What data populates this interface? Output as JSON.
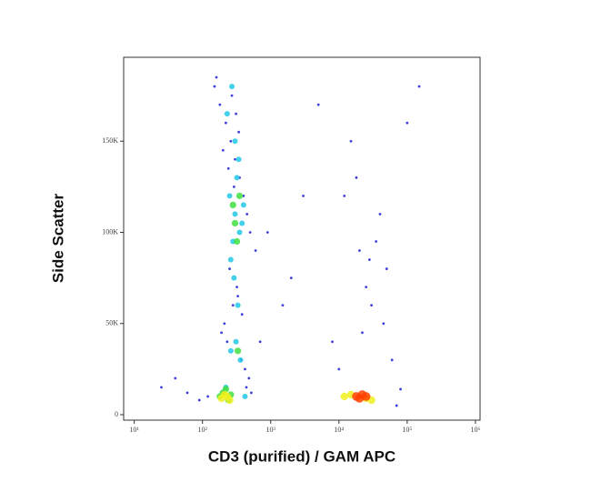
{
  "chart_data": {
    "type": "scatter",
    "x_label": "CD3 (purified) / GAM APC",
    "y_label": "Side Scatter",
    "xscale": "log",
    "xlim": [
      7,
      1170000
    ],
    "ylim": [
      -3000,
      196000
    ],
    "xticks": [
      {
        "value": 10,
        "label": "10¹"
      },
      {
        "value": 100,
        "label": "10²"
      },
      {
        "value": 1000,
        "label": "10³"
      },
      {
        "value": 10000,
        "label": "10⁴"
      },
      {
        "value": 100000,
        "label": "10⁵"
      },
      {
        "value": 1000000,
        "label": "10⁶"
      }
    ],
    "yticks": [
      0,
      {
        "value": 50000,
        "label": "50K"
      },
      {
        "value": 100000,
        "label": "100K"
      },
      {
        "value": 150000,
        "label": "150K"
      }
    ],
    "series": [
      {
        "color": "#2a2ad8",
        "x": [
          150,
          180,
          220,
          260,
          300,
          350,
          400,
          450,
          500,
          600,
          250,
          320,
          280,
          210,
          190,
          230,
          370,
          420,
          480,
          160,
          270,
          310,
          340,
          200,
          240,
          290,
          330,
          380,
          440,
          520,
          120,
          90,
          60,
          40,
          25,
          700,
          900,
          1500,
          8000,
          12000,
          15000,
          20000,
          25000,
          30000,
          40000,
          50000,
          60000,
          10000,
          18000,
          35000,
          5000,
          3000,
          2000,
          70000,
          100000,
          150000,
          80000,
          22000,
          28000,
          45000
        ],
        "values": [
          180000,
          170000,
          160000,
          150000,
          140000,
          130000,
          120000,
          110000,
          100000,
          90000,
          80000,
          70000,
          60000,
          50000,
          45000,
          40000,
          30000,
          25000,
          20000,
          185000,
          175000,
          165000,
          155000,
          145000,
          135000,
          125000,
          65000,
          55000,
          15000,
          12000,
          10000,
          8000,
          12000,
          20000,
          15000,
          40000,
          100000,
          60000,
          40000,
          120000,
          150000,
          90000,
          70000,
          60000,
          110000,
          80000,
          30000,
          25000,
          130000,
          95000,
          170000,
          120000,
          75000,
          5000,
          160000,
          180000,
          14000,
          45000,
          85000,
          50000
        ]
      },
      {
        "color": "#22c8e8",
        "x": [
          250,
          300,
          350,
          280,
          320,
          400,
          260,
          340,
          300,
          380,
          290,
          330,
          220,
          260,
          310,
          200,
          360,
          230,
          270,
          420
        ],
        "values": [
          120000,
          110000,
          100000,
          95000,
          130000,
          115000,
          85000,
          140000,
          150000,
          105000,
          75000,
          60000,
          15000,
          35000,
          40000,
          12000,
          30000,
          165000,
          180000,
          10000
        ]
      },
      {
        "color": "#40e040",
        "x": [
          300,
          320,
          280,
          350,
          330,
          200,
          240,
          180,
          260,
          220
        ],
        "values": [
          105000,
          95000,
          115000,
          120000,
          35000,
          12000,
          8000,
          10000,
          11000,
          14000
        ]
      },
      {
        "color": "#f0f020",
        "x": [
          190,
          230,
          250,
          210,
          15000,
          25000,
          12000,
          30000
        ],
        "values": [
          9000,
          10000,
          8000,
          11000,
          11000,
          9000,
          10000,
          8000
        ]
      },
      {
        "color": "#ff4000",
        "x": [
          18000,
          20000,
          22000,
          25000
        ],
        "values": [
          10000,
          9000,
          11000,
          10000
        ]
      }
    ]
  }
}
